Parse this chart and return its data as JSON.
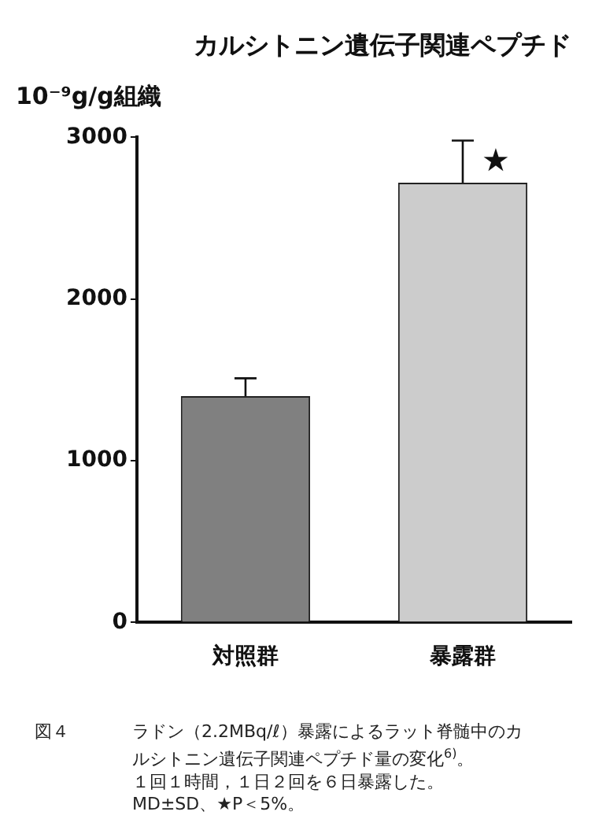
{
  "chart_data": {
    "type": "bar",
    "title": "カルシトニン遺伝子関連ペプチド",
    "ylabel": "10⁻⁹g/g組織",
    "categories": [
      "対照群",
      "暴露群"
    ],
    "values": [
      1400,
      2720
    ],
    "colors": [
      "#808080",
      "#cccccc"
    ],
    "errors": [
      110,
      260
    ],
    "ylim": [
      0,
      3000
    ],
    "yticks": [
      0,
      1000,
      2000,
      3000
    ],
    "grid": false,
    "legend": false,
    "annotations": [
      {
        "text": "★",
        "x": "暴露群",
        "y": 2980
      },
      "図４",
      "ラドン（2.2MBq/ℓ）暴露によるラット脊髄中のカルシトニン遺伝子関連ペプチド量の変化$^{6)}$。",
      "１回１時間，１日２回を６日暴露した。",
      "MD±SD、★P＜5%。"
    ]
  }
}
